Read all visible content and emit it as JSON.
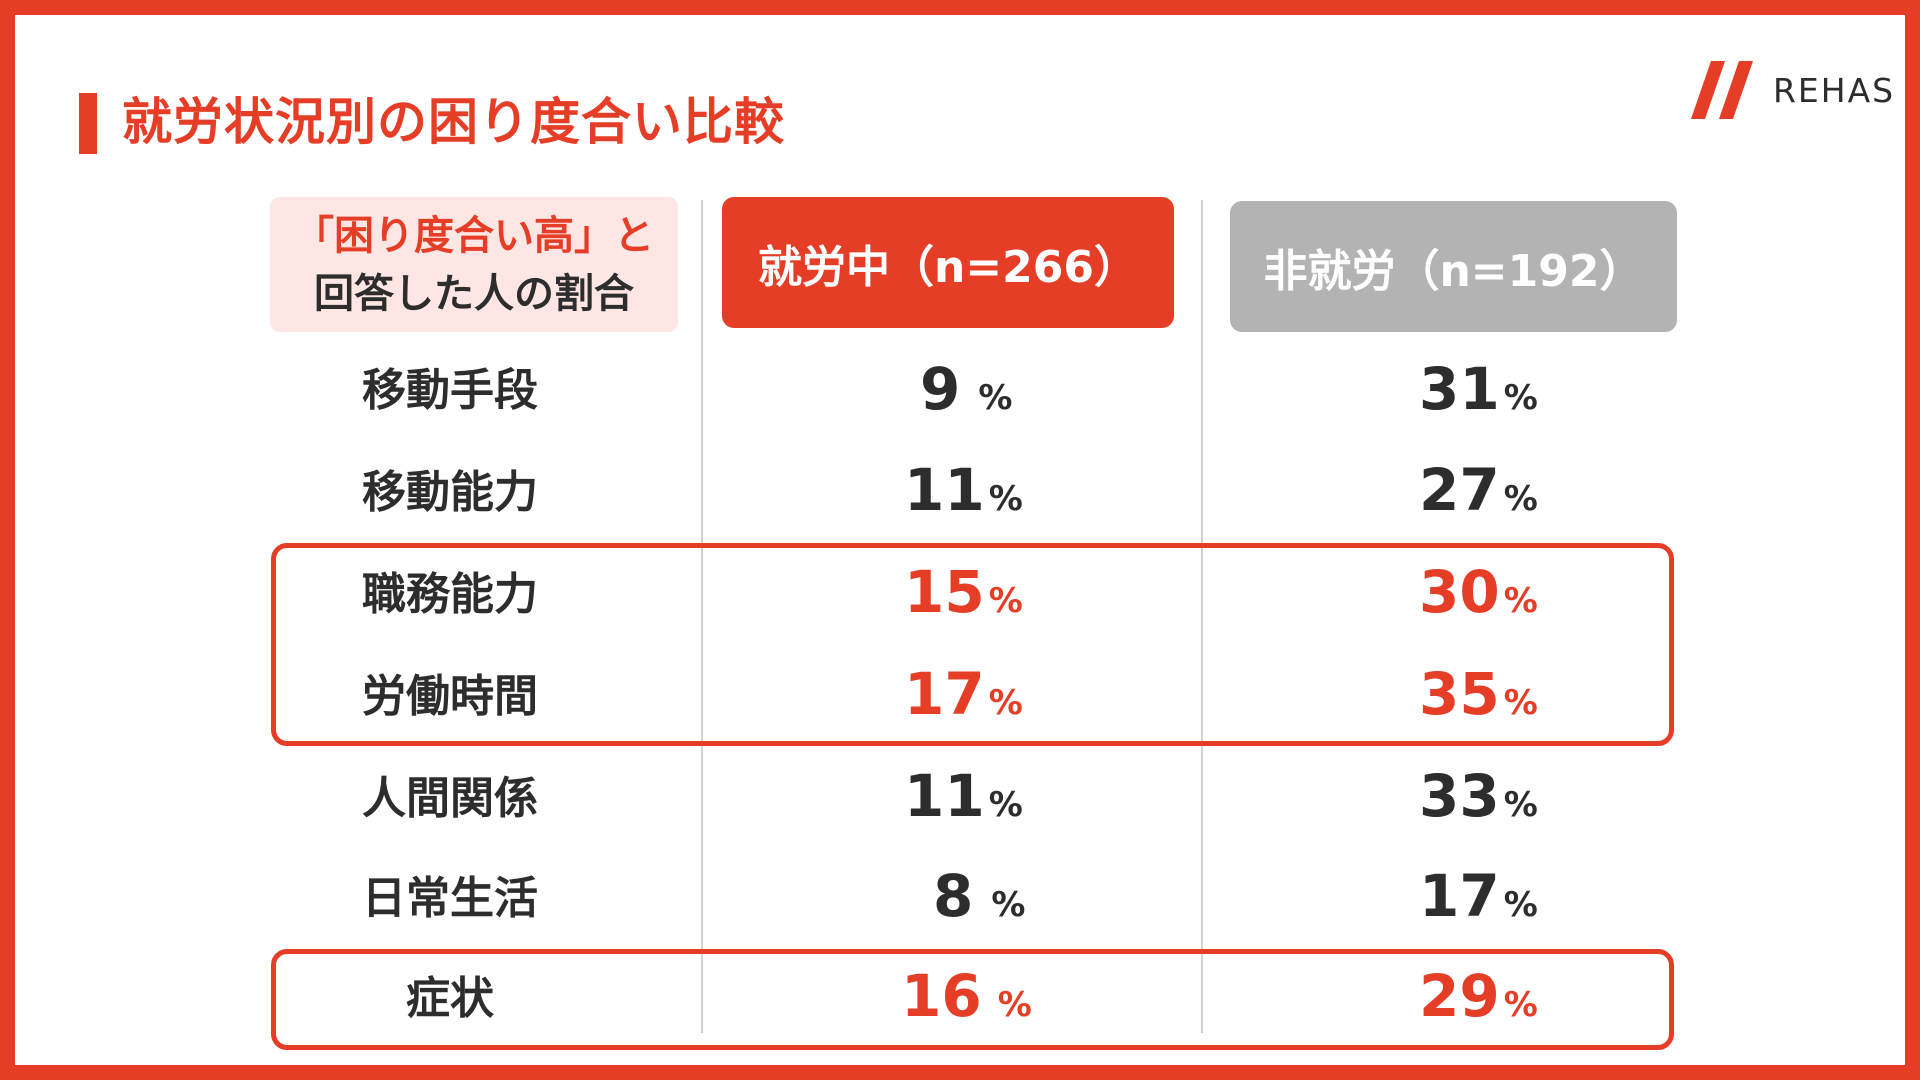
{
  "title": "就労状況別の困り度合い比較",
  "logo": {
    "text": "REHAS",
    "mark_color": "#e53d26"
  },
  "legend": {
    "line1": "「困り度合い高」と",
    "line2": "回答した人の割合",
    "background": "#fde6e4"
  },
  "columns": [
    {
      "label": "就労中（n=266）",
      "color": "#e53d26"
    },
    {
      "label": "非就労（n=192）",
      "color": "#b3b3b3"
    }
  ],
  "percent_sign": "%",
  "rows": [
    {
      "label": "移動手段",
      "working": "9",
      "nonworking": "31",
      "highlighted": false
    },
    {
      "label": "移動能力",
      "working": "11",
      "nonworking": "27",
      "highlighted": false
    },
    {
      "label": "職務能力",
      "working": "15",
      "nonworking": "30",
      "highlighted": true
    },
    {
      "label": "労働時間",
      "working": "17",
      "nonworking": "35",
      "highlighted": true
    },
    {
      "label": "人間関係",
      "working": "11",
      "nonworking": "33",
      "highlighted": false
    },
    {
      "label": "日常生活",
      "working": "8",
      "nonworking": "17",
      "highlighted": false
    },
    {
      "label": "症状",
      "working": "16",
      "nonworking": "29",
      "highlighted": true
    }
  ],
  "colors": {
    "accent": "#e53d26",
    "text": "#2d2d2d",
    "grey": "#b3b3b3"
  }
}
